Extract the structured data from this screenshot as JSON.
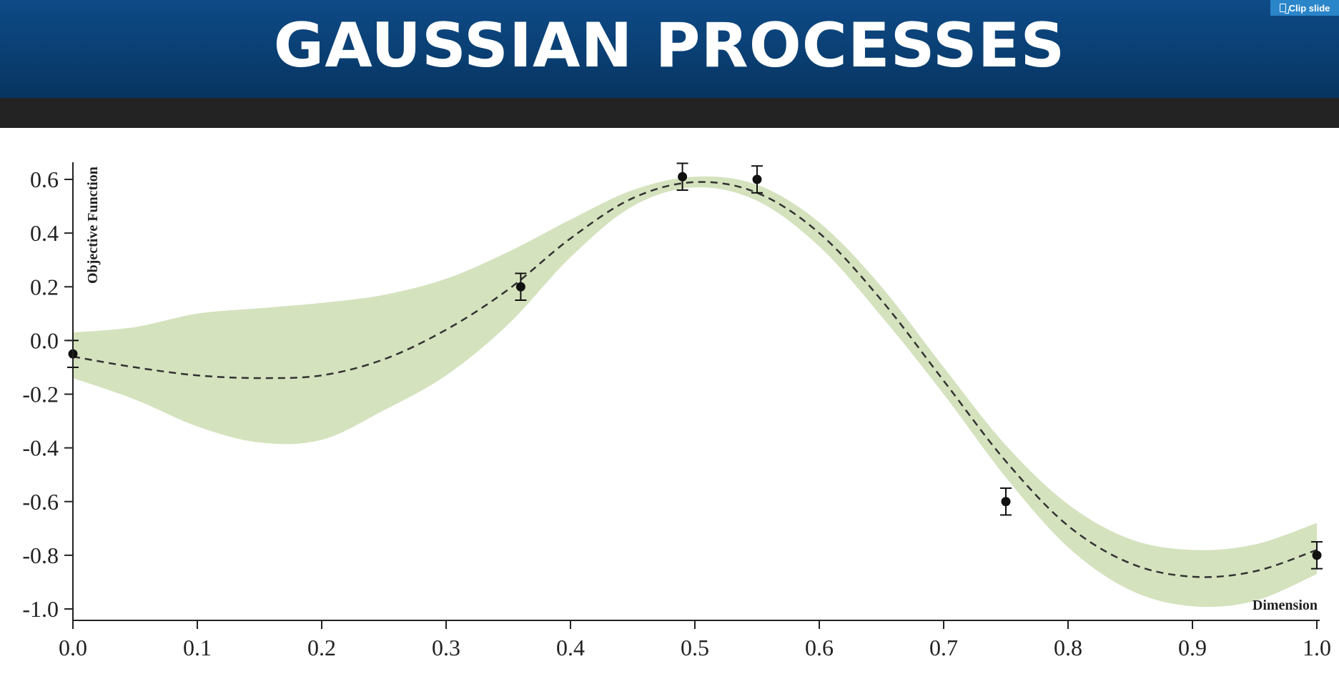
{
  "slide": {
    "title": "GAUSSIAN PROCESSES",
    "clip_button_label": "Clip slide",
    "colors": {
      "banner": "#0a3f73",
      "band": "#d5e2be",
      "dark_bar": "#232323"
    }
  },
  "chart_data": {
    "type": "line",
    "title": "",
    "xlabel": "Dimension",
    "ylabel": "Objective Function",
    "xlim": [
      0.0,
      1.0
    ],
    "ylim": [
      -1.0,
      0.65
    ],
    "x_ticks": [
      "0.0",
      "0.1",
      "0.2",
      "0.3",
      "0.4",
      "0.5",
      "0.6",
      "0.7",
      "0.8",
      "0.9",
      "1.0"
    ],
    "y_ticks": [
      "0.6",
      "0.4",
      "0.2",
      "0.0",
      "-0.2",
      "-0.4",
      "-0.6",
      "-0.8",
      "-1.0"
    ],
    "grid": false,
    "mean_curve": {
      "style": "dashed",
      "x": [
        0.0,
        0.05,
        0.1,
        0.15,
        0.2,
        0.25,
        0.3,
        0.35,
        0.4,
        0.45,
        0.5,
        0.55,
        0.6,
        0.65,
        0.7,
        0.75,
        0.8,
        0.85,
        0.9,
        0.95,
        1.0
      ],
      "y": [
        -0.06,
        -0.1,
        -0.13,
        -0.14,
        -0.13,
        -0.07,
        0.04,
        0.19,
        0.38,
        0.53,
        0.59,
        0.55,
        0.4,
        0.15,
        -0.15,
        -0.45,
        -0.69,
        -0.83,
        -0.88,
        -0.86,
        -0.78
      ]
    },
    "confidence_band": {
      "upper": [
        0.03,
        0.05,
        0.1,
        0.12,
        0.14,
        0.17,
        0.23,
        0.33,
        0.45,
        0.56,
        0.61,
        0.58,
        0.44,
        0.2,
        -0.1,
        -0.39,
        -0.61,
        -0.74,
        -0.78,
        -0.76,
        -0.68
      ],
      "lower": [
        -0.14,
        -0.22,
        -0.32,
        -0.38,
        -0.37,
        -0.26,
        -0.13,
        0.06,
        0.31,
        0.5,
        0.57,
        0.52,
        0.35,
        0.09,
        -0.2,
        -0.51,
        -0.77,
        -0.93,
        -0.99,
        -0.97,
        -0.87
      ]
    },
    "observations": [
      {
        "x": 0.0,
        "y": -0.05,
        "err": 0.05
      },
      {
        "x": 0.36,
        "y": 0.2,
        "err": 0.05
      },
      {
        "x": 0.49,
        "y": 0.61,
        "err": 0.05
      },
      {
        "x": 0.55,
        "y": 0.6,
        "err": 0.05
      },
      {
        "x": 0.75,
        "y": -0.6,
        "err": 0.05
      },
      {
        "x": 1.0,
        "y": -0.8,
        "err": 0.05
      }
    ]
  }
}
